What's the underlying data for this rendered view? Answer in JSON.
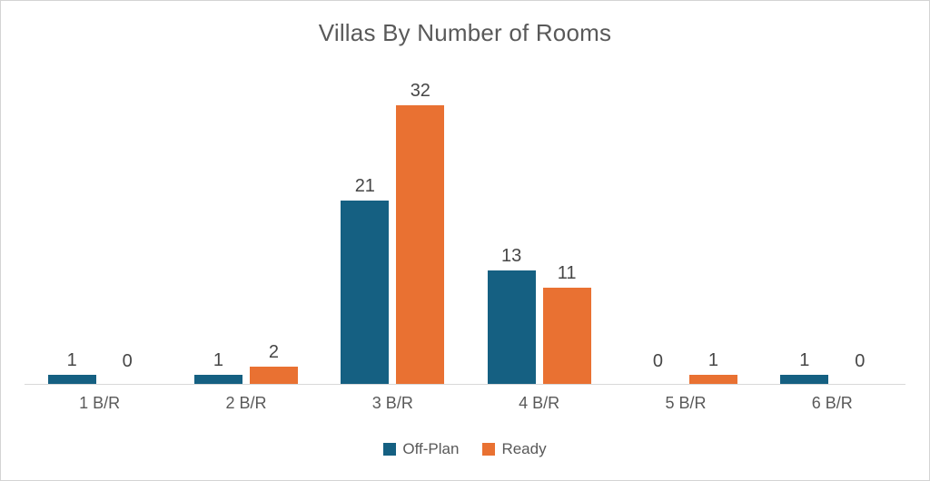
{
  "chart_data": {
    "type": "bar",
    "title": "Villas By Number of Rooms",
    "categories": [
      "1 B/R",
      "2 B/R",
      "3 B/R",
      "4 B/R",
      "5 B/R",
      "6 B/R"
    ],
    "series": [
      {
        "name": "Off-Plan",
        "color": "#156082",
        "values": [
          1,
          1,
          21,
          13,
          0,
          1
        ]
      },
      {
        "name": "Ready",
        "color": "#E97132",
        "values": [
          0,
          2,
          32,
          11,
          1,
          0
        ]
      }
    ],
    "xlabel": "",
    "ylabel": "",
    "ylim": [
      0,
      35
    ],
    "grid": false,
    "y_axis_visible": false,
    "data_labels": true,
    "legend_position": "bottom"
  },
  "colors": {
    "off_plan": "#156082",
    "ready": "#E97132",
    "axis_line": "#D9D9D9",
    "title_text": "#595959",
    "data_label_text": "#464646",
    "category_text": "#595959",
    "background": "#FFFFFF",
    "border": "#D4D4D4"
  }
}
